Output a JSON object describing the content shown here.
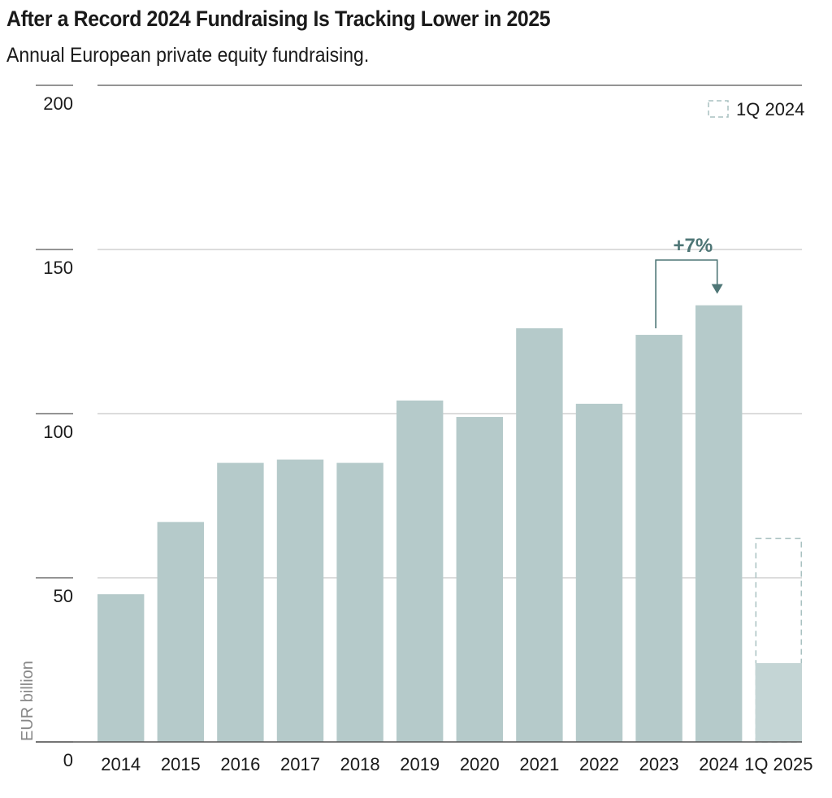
{
  "header": {
    "title": "After a Record 2024 Fundraising Is Tracking Lower in 2025",
    "subtitle": "Annual European private equity fundraising."
  },
  "chart_data": {
    "type": "bar",
    "title": "After a Record 2024 Fundraising Is Tracking Lower in 2025",
    "subtitle": "Annual European private equity fundraising.",
    "ylabel": "EUR billion",
    "xlabel": "",
    "ylim": [
      0,
      200
    ],
    "yticks": [
      0,
      50,
      100,
      150,
      200
    ],
    "ytick_labels": [
      "0",
      "50",
      "100",
      "150",
      "200"
    ],
    "categories": [
      "2014",
      "2015",
      "2016",
      "2017",
      "2018",
      "2019",
      "2020",
      "2021",
      "2022",
      "2023",
      "2024",
      "1Q 2025"
    ],
    "values": [
      45,
      67,
      85,
      86,
      85,
      104,
      99,
      126,
      103,
      124,
      133,
      24
    ],
    "comparison": {
      "label": "1Q 2024",
      "category": "1Q 2025",
      "value": 62
    },
    "annotation": {
      "text": "+7%",
      "from": "2023",
      "to": "2024"
    },
    "legend": {
      "position": "top-right",
      "entries": [
        "1Q 2024"
      ]
    },
    "grid": true,
    "colors": {
      "bar": "#b5caca",
      "bar_partial": "#c4d5d5",
      "comparison_outline": "#a9c1c1",
      "annotation": "#4e7676",
      "grid": "#c8c8c8",
      "axis": "#555555"
    }
  }
}
